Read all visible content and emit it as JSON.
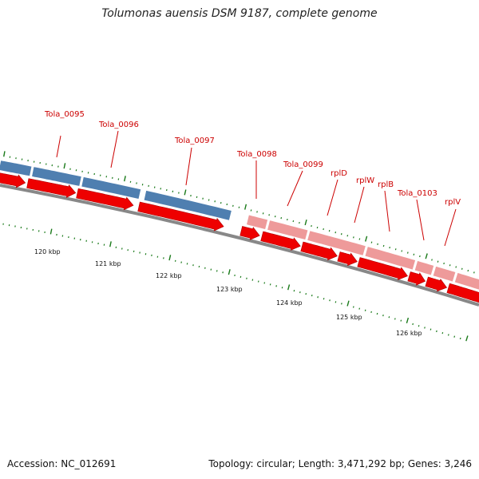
{
  "title": "Tolumonas auensis DSM 9187, complete genome",
  "accession": "Accession: NC_012691",
  "summary": "Topology: circular; Length: 3,471,292 bp; Genes: 3,246",
  "colors": {
    "blue_gene": "#4f7fb0",
    "pink_gene": "#ee9a9a",
    "cds_red": "#ee0000",
    "backbone": "#888888",
    "tick_green": "#1a7a1a",
    "label_red": "#cc0000"
  },
  "gene_labels": [
    "Tola_0095",
    "Tola_0096",
    "Tola_0097",
    "Tola_0098",
    "Tola_0099",
    "rplD",
    "rplW",
    "rplB",
    "Tola_0103",
    "rplV"
  ],
  "scale_labels": [
    "120 kbp",
    "121 kbp",
    "122 kbp",
    "123 kbp",
    "124 kbp",
    "125 kbp",
    "126 kbp"
  ]
}
